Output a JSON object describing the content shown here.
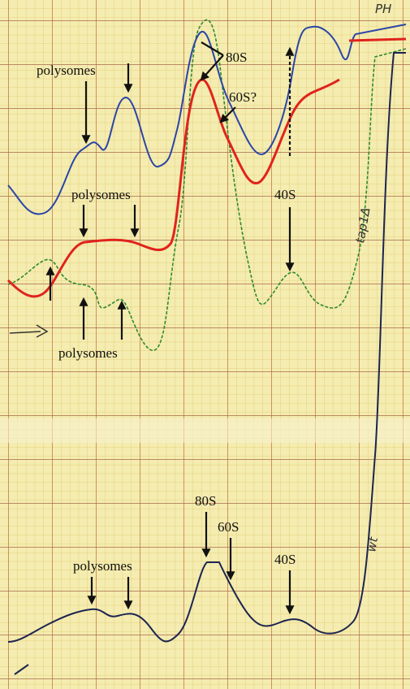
{
  "annotations": {
    "top": {
      "polysomes_1": "polysomes",
      "s80": "80S",
      "s60": "60S?",
      "s40": "40S",
      "polysomes_2": "polysomes",
      "polysomes_3": "polysomes",
      "mutant": "tap1Δ",
      "corner": "PH"
    },
    "bottom": {
      "s80": "80S",
      "s60": "60S",
      "s40": "40S",
      "polysomes": "polysomes",
      "wildtype": "wt"
    }
  }
}
